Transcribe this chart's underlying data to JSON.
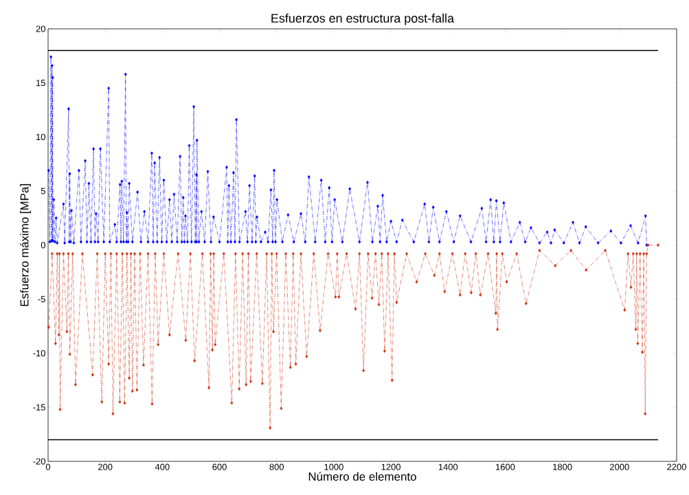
{
  "chart_data": {
    "type": "line",
    "title": "Esfuerzos en estructura post-falla",
    "xlabel": "Número de elemento",
    "ylabel": "Esfuerzo máximo [MPa]",
    "xlim": [
      0,
      2200
    ],
    "xticks": [
      0,
      200,
      400,
      600,
      800,
      1000,
      1200,
      1400,
      1600,
      1800,
      2000,
      2200
    ],
    "ylim": [
      -20,
      20
    ],
    "yticks": [
      -20,
      -15,
      -10,
      -5,
      0,
      5,
      10,
      15,
      20
    ],
    "grid": false,
    "series": [
      {
        "color": "#0000ff",
        "marker": "diamond",
        "line_style": "dashed",
        "x": [
          2,
          6,
          10,
          12,
          14,
          15,
          16,
          17,
          20,
          24,
          28,
          32,
          54,
          58,
          72,
          74,
          76,
          79,
          82,
          90,
          108,
          115,
          130,
          136,
          143,
          150,
          159,
          164,
          168,
          175,
          183,
          195,
          212,
          216,
          234,
          240,
          252,
          255,
          258,
          264,
          271,
          274,
          276,
          280,
          284,
          295,
          313,
          325,
          337,
          350,
          363,
          368,
          373,
          382,
          390,
          398,
          405,
          415,
          425,
          433,
          441,
          452,
          462,
          468,
          473,
          477,
          481,
          488,
          494,
          502,
          510,
          515,
          519,
          520,
          521,
          528,
          537,
          548,
          559,
          570,
          579,
          600,
          625,
          629,
          633,
          640,
          649,
          654,
          659,
          670,
          691,
          698,
          705,
          714,
          723,
          727,
          731,
          745,
          760,
          770,
          780,
          786,
          791,
          796,
          801,
          820,
          840,
          860,
          885,
          900,
          913,
          935,
          956,
          970,
          984,
          994,
          1003,
          1030,
          1056,
          1090,
          1118,
          1135,
          1154,
          1162,
          1171,
          1185,
          1200,
          1220,
          1240,
          1280,
          1318,
          1333,
          1348,
          1370,
          1394,
          1420,
          1442,
          1480,
          1518,
          1533,
          1549,
          1560,
          1569,
          1582,
          1595,
          1620,
          1651,
          1670,
          1690,
          1720,
          1747,
          1760,
          1773,
          1805,
          1837,
          1860,
          1882,
          1925,
          1970,
          2005,
          2039,
          2065,
          2091,
          2095
        ],
        "values": [
          6.9,
          0.3,
          17.4,
          0.4,
          16.6,
          0.4,
          15.5,
          0.4,
          4.2,
          0.3,
          2.5,
          0.2,
          3.8,
          0.2,
          12.6,
          0.3,
          6.6,
          0.3,
          3.2,
          0.2,
          6.9,
          0.3,
          7.8,
          0.3,
          5.7,
          0.3,
          8.9,
          0.3,
          2.9,
          0.3,
          8.9,
          0.3,
          14.5,
          0.3,
          1.9,
          0.3,
          5.6,
          0.3,
          5.9,
          0.3,
          15.8,
          0.3,
          3.0,
          0.3,
          5.7,
          0.3,
          4.9,
          0.3,
          3.1,
          0.3,
          8.5,
          0.3,
          7.6,
          0.3,
          8.1,
          0.3,
          6.0,
          0.3,
          4.2,
          0.3,
          4.7,
          0.3,
          8.2,
          0.3,
          4.4,
          0.3,
          2.7,
          0.3,
          9.2,
          0.3,
          12.8,
          0.3,
          6.5,
          0.3,
          9.7,
          0.3,
          3.1,
          0.3,
          6.8,
          0.3,
          2.6,
          0.3,
          7.2,
          0.3,
          5.5,
          0.3,
          6.7,
          0.3,
          11.6,
          0.3,
          3.1,
          0.3,
          5.5,
          0.3,
          6.4,
          0.3,
          2.6,
          0.3,
          1.2,
          0.3,
          5.1,
          0.3,
          6.9,
          0.3,
          4.2,
          0.3,
          2.8,
          0.3,
          2.9,
          0.3,
          6.3,
          0.3,
          6.0,
          0.3,
          5.3,
          0.3,
          4.2,
          0.3,
          5.2,
          0.3,
          5.8,
          0.3,
          3.6,
          0.3,
          4.6,
          0.3,
          2.2,
          0.3,
          2.3,
          0.3,
          3.8,
          0.3,
          3.5,
          0.3,
          3.1,
          0.3,
          2.7,
          0.3,
          3.4,
          0.3,
          4.2,
          0.3,
          4.1,
          0.3,
          3.9,
          0.3,
          2.1,
          0.3,
          1.6,
          0.2,
          1.2,
          0.2,
          1.4,
          0.2,
          2.1,
          0.2,
          1.7,
          0.2,
          1.3,
          0.2,
          1.8,
          0.2,
          2.7,
          0
        ]
      },
      {
        "color": "#d03010",
        "marker": "diamond",
        "line_style": "dashed",
        "x": [
          2,
          14,
          26,
          32,
          38,
          40,
          42,
          54,
          66,
          71,
          76,
          86,
          96,
          120,
          156,
          172,
          188,
          200,
          212,
          220,
          227,
          240,
          251,
          260,
          268,
          276,
          284,
          290,
          295,
          303,
          311,
          322,
          334,
          350,
          364,
          375,
          385,
          405,
          425,
          455,
          482,
          498,
          513,
          540,
          563,
          569,
          575,
          580,
          585,
          615,
          643,
          656,
          669,
          681,
          693,
          701,
          709,
          730,
          750,
          765,
          777,
          783,
          789,
          800,
          816,
          832,
          848,
          858,
          867,
          885,
          905,
          930,
          952,
          980,
          1006,
          1012,
          1018,
          1045,
          1076,
          1090,
          1104,
          1120,
          1134,
          1146,
          1158,
          1168,
          1178,
          1190,
          1204,
          1212,
          1220,
          1255,
          1290,
          1320,
          1352,
          1370,
          1388,
          1415,
          1442,
          1460,
          1481,
          1497,
          1513,
          1540,
          1567,
          1570,
          1573,
          1590,
          1605,
          1640,
          1673,
          1720,
          1775,
          1830,
          1883,
          1950,
          2018,
          2030,
          2040,
          2048,
          2057,
          2060,
          2064,
          2072,
          2080,
          2085,
          2090,
          2095,
          2100,
          2135
        ],
        "values": [
          -7.6,
          -0.8,
          -9.1,
          -0.8,
          -8.3,
          -0.8,
          -15.2,
          -0.8,
          -8.0,
          -0.8,
          -10.1,
          -0.8,
          -12.9,
          -0.8,
          -12.0,
          -0.8,
          -14.5,
          -0.8,
          -11.0,
          -0.8,
          -15.6,
          -0.8,
          -14.5,
          -0.8,
          -14.6,
          -0.8,
          -12.3,
          -0.8,
          -13.5,
          -0.8,
          -13.4,
          -0.8,
          -11.1,
          -0.8,
          -14.7,
          -0.8,
          -9.2,
          -0.8,
          -8.3,
          -0.8,
          -8.8,
          -0.8,
          -10.7,
          -0.8,
          -13.2,
          -0.8,
          -9.7,
          -0.8,
          -9.2,
          -0.8,
          -14.6,
          -0.8,
          -13.3,
          -0.8,
          -12.9,
          -0.8,
          -12.6,
          -0.8,
          -12.8,
          -0.8,
          -16.9,
          -0.8,
          -8.0,
          -0.8,
          -15.1,
          -0.8,
          -11.3,
          -0.8,
          -11.0,
          -0.8,
          -10.3,
          -0.8,
          -7.9,
          -0.8,
          -4.8,
          -0.8,
          -4.8,
          -0.8,
          -5.9,
          -0.8,
          -11.6,
          -0.8,
          -4.9,
          -0.8,
          -5.5,
          -0.8,
          -9.8,
          -0.8,
          -12.5,
          -0.8,
          -5.3,
          -0.8,
          -3.4,
          -0.8,
          -2.8,
          -0.8,
          -4.3,
          -0.8,
          -4.6,
          -0.8,
          -4.4,
          -0.8,
          -4.6,
          -0.8,
          -6.3,
          -0.8,
          -7.8,
          -0.8,
          -3.4,
          -0.8,
          -5.4,
          -0.5,
          -1.9,
          -0.5,
          -2.3,
          -0.5,
          -6.0,
          -0.8,
          -3.9,
          -0.8,
          -7.8,
          -0.8,
          -9.1,
          -0.8,
          -9.9,
          -0.8,
          -15.6,
          -0.8,
          0,
          0
        ]
      },
      {
        "color": "#000000",
        "marker": "none",
        "line_style": "solid",
        "x": [
          0,
          2135
        ],
        "values": [
          18,
          18
        ]
      },
      {
        "color": "#000000",
        "marker": "none",
        "line_style": "solid",
        "x": [
          0,
          2135
        ],
        "values": [
          -18,
          -18
        ]
      }
    ]
  }
}
